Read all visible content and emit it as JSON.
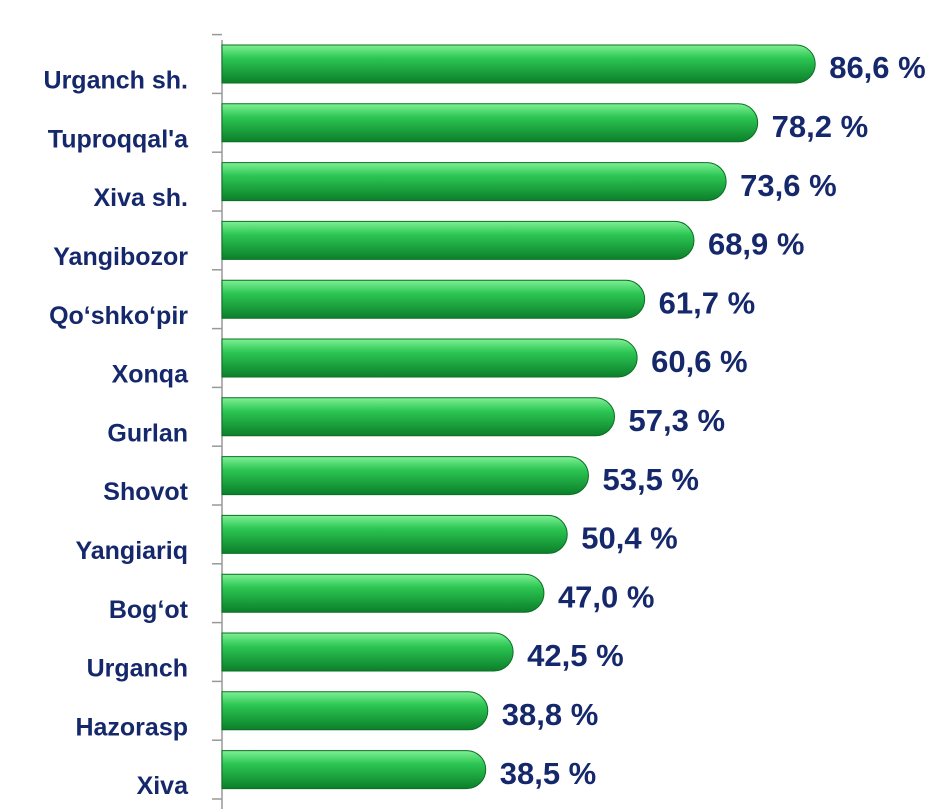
{
  "chart_data": {
    "type": "bar",
    "orientation": "horizontal",
    "categories": [
      "Urganch sh.",
      "Tuproqqal'a",
      "Xiva sh.",
      "Yangibozor",
      "Qo‘shko‘pir",
      "Xonqa",
      "Gurlan",
      "Shovot",
      "Yangiariq",
      "Bog‘ot",
      "Urganch",
      "Hazorasp",
      "Xiva"
    ],
    "values": [
      86.6,
      78.2,
      73.6,
      68.9,
      61.7,
      60.6,
      57.3,
      53.5,
      50.4,
      47.0,
      42.5,
      38.8,
      38.5
    ],
    "value_labels": [
      "86,6 %",
      "78,2 %",
      "73,6 %",
      "68,9 %",
      "61,7 %",
      "60,6 %",
      "57,3 %",
      "53,5 %",
      "50,4 %",
      "47,0 %",
      "42,5 %",
      "38,8 %",
      "38,5 %"
    ],
    "color": "#1fb344"
  }
}
